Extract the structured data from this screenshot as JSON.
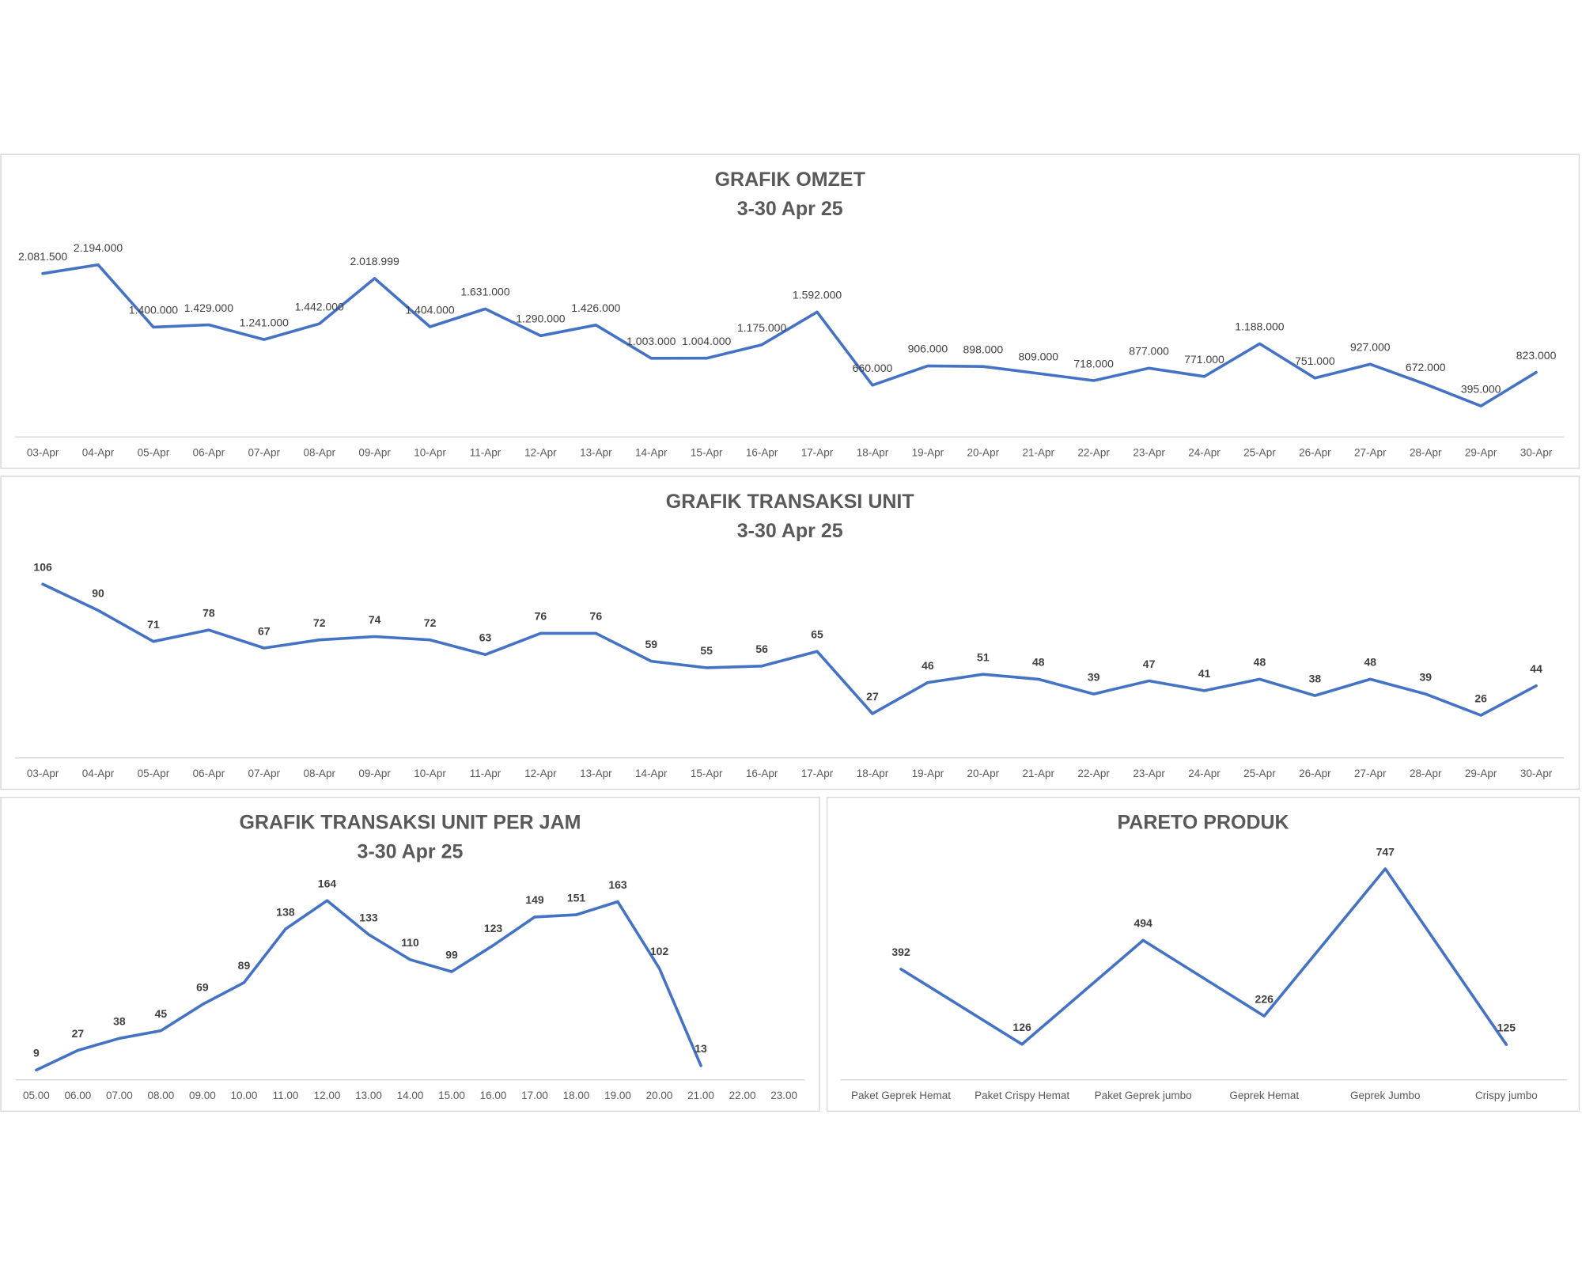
{
  "chart_data": [
    {
      "type": "line",
      "title": "GRAFIK OMZET",
      "subtitle": "3-30 Apr 25",
      "categories": [
        "03-Apr",
        "04-Apr",
        "05-Apr",
        "06-Apr",
        "07-Apr",
        "08-Apr",
        "09-Apr",
        "10-Apr",
        "11-Apr",
        "12-Apr",
        "13-Apr",
        "14-Apr",
        "15-Apr",
        "16-Apr",
        "17-Apr",
        "18-Apr",
        "19-Apr",
        "20-Apr",
        "21-Apr",
        "22-Apr",
        "23-Apr",
        "24-Apr",
        "25-Apr",
        "26-Apr",
        "27-Apr",
        "28-Apr",
        "29-Apr",
        "30-Apr"
      ],
      "values": [
        2081500,
        2194000,
        1400000,
        1429000,
        1241000,
        1442000,
        2018999,
        1404000,
        1631000,
        1290000,
        1426000,
        1003000,
        1004000,
        1175000,
        1592000,
        660000,
        906000,
        898000,
        809000,
        718000,
        877000,
        771000,
        1188000,
        751000,
        927000,
        672000,
        395000,
        823000
      ],
      "value_labels": [
        "2.081.500",
        "2.194.000",
        "1.400.000",
        "1.429.000",
        "1.241.000",
        "1.442.000",
        "2.018.999",
        "1.404.000",
        "1.631.000",
        "1.290.000",
        "1.426.000",
        "1.003.000",
        "1.004.000",
        "1.175.000",
        "1.592.000",
        "660.000",
        "906.000",
        "898.000",
        "809.000",
        "718.000",
        "877.000",
        "771.000",
        "1.188.000",
        "751.000",
        "927.000",
        "672.000",
        "395.000",
        "823.000"
      ],
      "color": "#4472c4",
      "ylim": [
        0,
        2500000
      ]
    },
    {
      "type": "line",
      "title": "GRAFIK TRANSAKSI UNIT",
      "subtitle": "3-30 Apr 25",
      "categories": [
        "03-Apr",
        "04-Apr",
        "05-Apr",
        "06-Apr",
        "07-Apr",
        "08-Apr",
        "09-Apr",
        "10-Apr",
        "11-Apr",
        "12-Apr",
        "13-Apr",
        "14-Apr",
        "15-Apr",
        "16-Apr",
        "17-Apr",
        "18-Apr",
        "19-Apr",
        "20-Apr",
        "21-Apr",
        "22-Apr",
        "23-Apr",
        "24-Apr",
        "25-Apr",
        "26-Apr",
        "27-Apr",
        "28-Apr",
        "29-Apr",
        "30-Apr"
      ],
      "values": [
        106,
        90,
        71,
        78,
        67,
        72,
        74,
        72,
        63,
        76,
        76,
        59,
        55,
        56,
        65,
        27,
        46,
        51,
        48,
        39,
        47,
        41,
        48,
        38,
        48,
        39,
        26,
        44
      ],
      "color": "#4472c4",
      "ylim": [
        0,
        120
      ]
    },
    {
      "type": "line",
      "title": "GRAFIK TRANSAKSI UNIT PER JAM",
      "subtitle": "3-30 Apr 25",
      "categories": [
        "05.00",
        "06.00",
        "07.00",
        "08.00",
        "09.00",
        "10.00",
        "11.00",
        "12.00",
        "13.00",
        "14.00",
        "15.00",
        "16.00",
        "17.00",
        "18.00",
        "19.00",
        "20.00",
        "21.00",
        "22.00",
        "23.00"
      ],
      "values": [
        9,
        27,
        38,
        45,
        69,
        89,
        138,
        164,
        133,
        110,
        99,
        123,
        149,
        151,
        163,
        102,
        13,
        null,
        null
      ],
      "color": "#4472c4",
      "ylim": [
        0,
        180
      ]
    },
    {
      "type": "line",
      "title": "PARETO PRODUK",
      "categories": [
        "Paket Geprek Hemat",
        "Paket Crispy Hemat",
        "Paket Geprek jumbo",
        "Geprek Hemat",
        "Geprek Jumbo",
        "Crispy jumbo"
      ],
      "values": [
        392,
        126,
        494,
        226,
        747,
        125
      ],
      "color": "#4472c4",
      "ylim": [
        0,
        800
      ]
    }
  ]
}
